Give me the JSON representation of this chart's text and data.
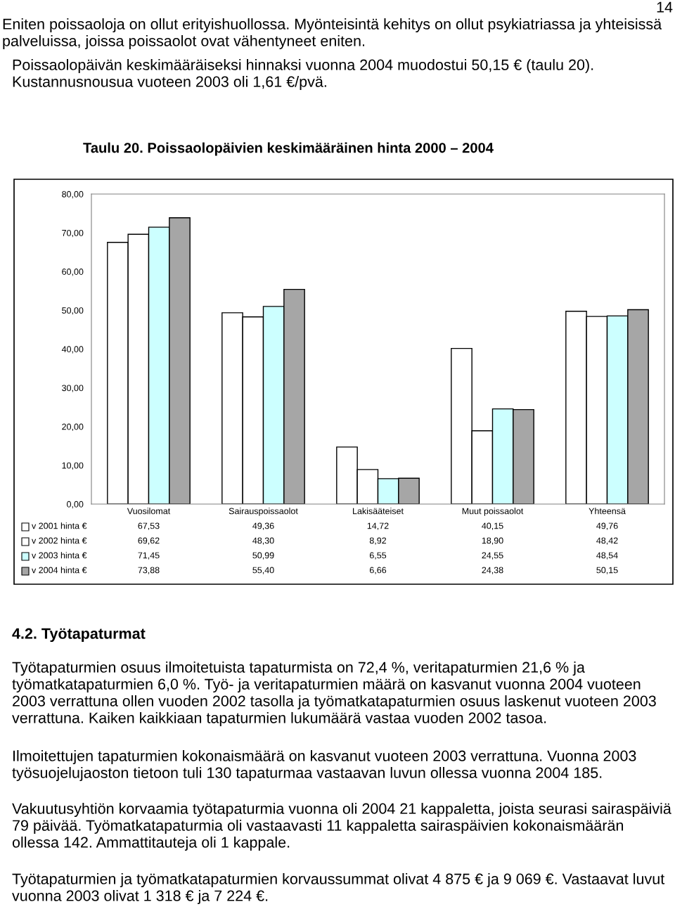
{
  "chart_data": {
    "type": "bar",
    "title": "Taulu 20. Poissaolopäivien keskimääräinen hinta 2000 – 2004",
    "categories": [
      "Vuosilomat",
      "Sairauspoissaolot",
      "Lakisääteiset",
      "Muut poissaolot",
      "Yhteensä"
    ],
    "series": [
      {
        "name": "v 2001 hinta €",
        "color": "#ffffff",
        "values": [
          67.53,
          49.36,
          14.72,
          40.15,
          49.76
        ],
        "value_labels": [
          "67,53",
          "49,36",
          "14,72",
          "40,15",
          "49,76"
        ]
      },
      {
        "name": "v 2002 hinta €",
        "color": "#ffffff",
        "values": [
          69.62,
          48.3,
          8.92,
          18.9,
          48.42
        ],
        "value_labels": [
          "69,62",
          "48,30",
          "8,92",
          "18,90",
          "48,42"
        ]
      },
      {
        "name": "v 2003 hinta €",
        "color": "#ccffff",
        "values": [
          71.45,
          50.99,
          6.55,
          24.55,
          48.54
        ],
        "value_labels": [
          "71,45",
          "50,99",
          "6,55",
          "24,55",
          "48,54"
        ]
      },
      {
        "name": "v 2004 hinta €",
        "color": "#a6a6a6",
        "values": [
          73.88,
          55.4,
          6.66,
          24.38,
          50.15
        ],
        "value_labels": [
          "73,88",
          "55,40",
          "6,66",
          "24,38",
          "50,15"
        ]
      }
    ],
    "ylim": [
      0,
      80
    ],
    "yticks": [
      {
        "value": 0,
        "label": "0,00"
      },
      {
        "value": 10,
        "label": "10,00"
      },
      {
        "value": 20,
        "label": "20,00"
      },
      {
        "value": 30,
        "label": "30,00"
      },
      {
        "value": 40,
        "label": "40,00"
      },
      {
        "value": 50,
        "label": "50,00"
      },
      {
        "value": 60,
        "label": "60,00"
      },
      {
        "value": 70,
        "label": "70,00"
      },
      {
        "value": 80,
        "label": "80,00"
      }
    ],
    "grid": false,
    "legend": "bottom",
    "annotations": [
      "14",
      "Eniten poissaoloja on ollut erityishuollossa. Myönteisintä kehitys on ollut psykiatriassa ja yhteisissä palveluissa, joissa poissaolot ovat vähentyneet eniten.",
      "Poissaolopäivän keskimääräiseksi hinnaksi vuonna 2004 muodostui 50,15 € (taulu 20). Kustannusnousua vuoteen 2003 oli 1,61 €/pvä.",
      "4.2. Työtapaturmat",
      "Työtapaturmien osuus ilmoitetuista tapaturmista on 72,4 %, veritapaturmien 21,6 % ja työmatkatapaturmien 6,0 %. Työ- ja veritapaturmien määrä on kasvanut vuonna 2004 vuoteen 2003 verrattuna ollen vuoden 2002 tasolla ja työmatkatapaturmien osuus laskenut vuoteen 2003 verrattuna. Kaiken kaikkiaan tapaturmien lukumäärä vastaa vuoden 2002 tasoa.",
      "Ilmoitettujen tapaturmien kokonaismäärä on kasvanut vuoteen 2003 verrattuna. Vuonna 2003 työsuojelujaoston tietoon tuli 130 tapaturmaa vastaavan luvun ollessa vuonna 2004 185.",
      "Vakuutusyhtiön korvaamia työtapaturmia vuonna oli 2004 21 kappaletta, joista seurasi sairaspäiviä 79 päivää. Työmatkatapaturmia oli vastaavasti 11 kappaletta sairaspäivien kokonaismäärän ollessa 142. Ammattitauteja oli 1 kappale.",
      "Työtapaturmien ja työmatkatapaturmien korvaussummat olivat 4 875 € ja 9 069 €. Vastaavat luvut vuonna 2003 olivat 1 318 € ja 7 224 €."
    ]
  }
}
